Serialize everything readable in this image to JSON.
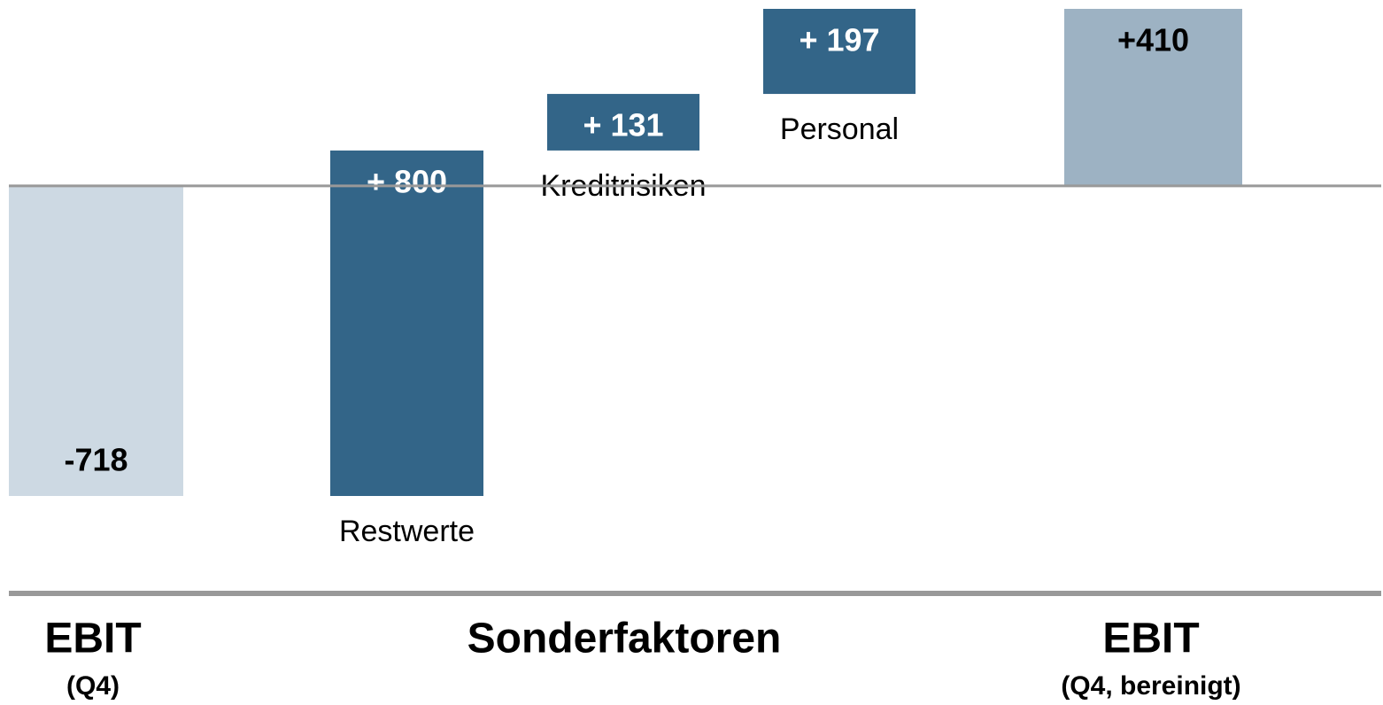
{
  "chart_data": {
    "type": "waterfall",
    "categories": [
      null,
      "Restwerte",
      "Kreditrisiken",
      "Personal",
      null
    ],
    "values": [
      -718,
      800,
      131,
      197,
      410
    ],
    "value_labels": [
      "-718",
      "+ 800",
      "+ 131",
      "+ 197",
      "+410"
    ],
    "totals": [
      true,
      false,
      false,
      false,
      true
    ],
    "colors": [
      "#cdd9e3",
      "#336588",
      "#336588",
      "#336588",
      "#9db2c3"
    ],
    "groups": [
      {
        "label": "EBIT",
        "sublabel": "(Q4)"
      },
      {
        "label": "Sonderfaktoren"
      },
      {
        "label": "EBIT",
        "sublabel": "(Q4, bereinigt)"
      }
    ]
  }
}
